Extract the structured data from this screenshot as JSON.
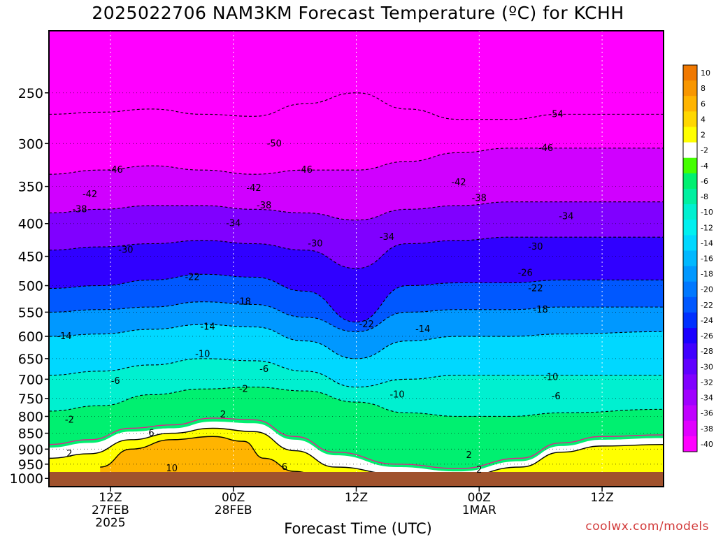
{
  "title": "2025022706 NAM3KM Forecast Temperature (ºC) for KCHH",
  "xlabel": "Forecast Time (UTC)",
  "credit": "coolwx.com/models",
  "chart_data": {
    "type": "heatmap",
    "title": "2025022706 NAM3KM Forecast Temperature (ºC) for KCHH",
    "xlabel": "Forecast Time (UTC)",
    "ylabel": "",
    "x_tick_labels": [
      {
        "hour": 6,
        "lines": [
          "12Z",
          "27FEB",
          "2025"
        ]
      },
      {
        "hour": 18,
        "lines": [
          "00Z",
          "28FEB"
        ]
      },
      {
        "hour": 30,
        "lines": [
          "12Z"
        ]
      },
      {
        "hour": 42,
        "lines": [
          "00Z",
          "1MAR"
        ]
      },
      {
        "hour": 54,
        "lines": [
          "12Z"
        ]
      }
    ],
    "xlim_hours": [
      0,
      60
    ],
    "y_ticks": [
      250,
      300,
      350,
      400,
      450,
      500,
      550,
      600,
      650,
      700,
      750,
      800,
      850,
      900,
      950,
      1000
    ],
    "y_scale": "log-pressure",
    "ylim_hpa": [
      1030,
      200
    ],
    "colorbar": {
      "labels": [
        "10",
        "8",
        "6",
        "4",
        "2",
        "-2",
        "-4",
        "-6",
        "-8",
        "-10",
        "-12",
        "-14",
        "-16",
        "-18",
        "-20",
        "-22",
        "-24",
        "-26",
        "-28",
        "-30",
        "-32",
        "-34",
        "-36",
        "-38",
        "-40"
      ],
      "colors": [
        "#f07800",
        "#f89600",
        "#ffb400",
        "#ffd700",
        "#ffff00",
        "#ffffff",
        "#44ff00",
        "#00f070",
        "#00f0a0",
        "#00f0d0",
        "#00f0f0",
        "#00d8ff",
        "#00b8ff",
        "#0098ff",
        "#0078ff",
        "#0058ff",
        "#0030ff",
        "#1a00ff",
        "#4000ff",
        "#6000ff",
        "#8000ff",
        "#a000ff",
        "#c000ff",
        "#e000ff",
        "#ff00ff"
      ]
    },
    "isotherm_surfaces": [
      {
        "label": "-6",
        "hpa": [
          785,
          770,
          740,
          725,
          720,
          730,
          760,
          790,
          800,
          800,
          790,
          780
        ]
      },
      {
        "label": "-10",
        "hpa": [
          690,
          680,
          665,
          650,
          655,
          680,
          720,
          700,
          690,
          690,
          690,
          690
        ]
      },
      {
        "label": "-14",
        "hpa": [
          600,
          595,
          585,
          575,
          580,
          610,
          650,
          610,
          600,
          600,
          595,
          590
        ]
      },
      {
        "label": "-18",
        "hpa": [
          550,
          545,
          540,
          530,
          535,
          560,
          590,
          550,
          545,
          545,
          540,
          540
        ]
      },
      {
        "label": "-22",
        "hpa": [
          505,
          500,
          490,
          480,
          485,
          510,
          570,
          500,
          495,
          495,
          490,
          490
        ]
      },
      {
        "label": "-30",
        "hpa": [
          440,
          435,
          430,
          425,
          430,
          440,
          470,
          430,
          425,
          420,
          420,
          420
        ]
      },
      {
        "label": "-38",
        "hpa": [
          385,
          380,
          375,
          375,
          380,
          385,
          395,
          380,
          375,
          370,
          370,
          370
        ]
      },
      {
        "label": "-46",
        "hpa": [
          335,
          330,
          325,
          330,
          335,
          330,
          330,
          320,
          310,
          305,
          305,
          305
        ]
      },
      {
        "label": "-54",
        "hpa": [
          270,
          268,
          265,
          270,
          272,
          260,
          250,
          265,
          275,
          275,
          270,
          270
        ]
      }
    ],
    "isotherm_hours": [
      0,
      5,
      10,
      15,
      20,
      25,
      30,
      35,
      40,
      45,
      50,
      60
    ],
    "contour_labels": [
      {
        "text": "-54",
        "hour": 49.5,
        "hpa": 270
      },
      {
        "text": "-50",
        "hour": 22,
        "hpa": 300
      },
      {
        "text": "-46",
        "hour": 6.5,
        "hpa": 330
      },
      {
        "text": "-46",
        "hour": 25,
        "hpa": 330
      },
      {
        "text": "-46",
        "hour": 48.5,
        "hpa": 305
      },
      {
        "text": "-42",
        "hour": 4,
        "hpa": 360
      },
      {
        "text": "-42",
        "hour": 20,
        "hpa": 352
      },
      {
        "text": "-42",
        "hour": 40,
        "hpa": 345
      },
      {
        "text": "-38",
        "hour": 3,
        "hpa": 380
      },
      {
        "text": "-38",
        "hour": 21,
        "hpa": 375
      },
      {
        "text": "-38",
        "hour": 42,
        "hpa": 365
      },
      {
        "text": "-34",
        "hour": 18,
        "hpa": 400
      },
      {
        "text": "-34",
        "hour": 33,
        "hpa": 420
      },
      {
        "text": "-34",
        "hour": 50.5,
        "hpa": 390
      },
      {
        "text": "-30",
        "hour": 7.5,
        "hpa": 440
      },
      {
        "text": "-30",
        "hour": 26,
        "hpa": 430
      },
      {
        "text": "-30",
        "hour": 47.5,
        "hpa": 435
      },
      {
        "text": "-26",
        "hour": 46.5,
        "hpa": 478
      },
      {
        "text": "-22",
        "hour": 14,
        "hpa": 485
      },
      {
        "text": "-22",
        "hour": 31,
        "hpa": 575
      },
      {
        "text": "-22",
        "hour": 47.5,
        "hpa": 505
      },
      {
        "text": "-18",
        "hour": 19,
        "hpa": 530
      },
      {
        "text": "-18",
        "hour": 48,
        "hpa": 545
      },
      {
        "text": "-14",
        "hour": 1.5,
        "hpa": 600
      },
      {
        "text": "-14",
        "hour": 15.5,
        "hpa": 580
      },
      {
        "text": "-14",
        "hour": 36.5,
        "hpa": 585
      },
      {
        "text": "-10",
        "hour": 15,
        "hpa": 640
      },
      {
        "text": "-10",
        "hour": 34,
        "hpa": 740
      },
      {
        "text": "-10",
        "hour": 49,
        "hpa": 695
      },
      {
        "text": "-6",
        "hour": 6.5,
        "hpa": 705
      },
      {
        "text": "-6",
        "hour": 21,
        "hpa": 675
      },
      {
        "text": "-6",
        "hour": 49.5,
        "hpa": 745
      },
      {
        "text": "-2",
        "hour": 2,
        "hpa": 810
      },
      {
        "text": "-2",
        "hour": 19,
        "hpa": 725
      },
      {
        "text": "2",
        "hour": 2,
        "hpa": 915
      },
      {
        "text": "2",
        "hour": 17,
        "hpa": 795
      },
      {
        "text": "2",
        "hour": 41,
        "hpa": 920
      },
      {
        "text": "2",
        "hour": 42,
        "hpa": 970
      },
      {
        "text": "6",
        "hour": 10,
        "hpa": 850
      },
      {
        "text": "6",
        "hour": 23,
        "hpa": 960
      },
      {
        "text": "10",
        "hour": 12,
        "hpa": 965
      }
    ]
  }
}
